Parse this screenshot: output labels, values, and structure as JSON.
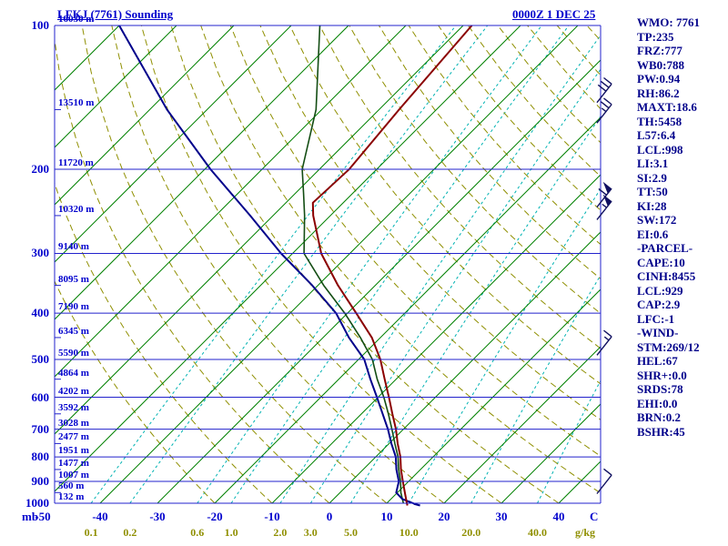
{
  "header": {
    "title": "LFKJ (7761) Sounding",
    "datetime": "0000Z  1 DEC 25"
  },
  "axes": {
    "pressure_unit": "mb",
    "temp_unit": "C",
    "mixing_unit": "g/kg",
    "pressure_labels": [
      100,
      200,
      300,
      400,
      500,
      600,
      700,
      800,
      900,
      1000
    ],
    "height_labels": [
      {
        "p": 100,
        "text": "16030 m"
      },
      {
        "p": 150,
        "text": "13510 m"
      },
      {
        "p": 200,
        "text": "11720 m"
      },
      {
        "p": 250,
        "text": "10320 m"
      },
      {
        "p": 300,
        "text": "9140 m"
      },
      {
        "p": 350,
        "text": "8095 m"
      },
      {
        "p": 400,
        "text": "7190 m"
      },
      {
        "p": 450,
        "text": "6345 m"
      },
      {
        "p": 500,
        "text": "5590 m"
      },
      {
        "p": 550,
        "text": "4864 m"
      },
      {
        "p": 600,
        "text": "4202 m"
      },
      {
        "p": 650,
        "text": "3592 m"
      },
      {
        "p": 700,
        "text": "3028 m"
      },
      {
        "p": 750,
        "text": "2477 m"
      },
      {
        "p": 800,
        "text": "1951 m"
      },
      {
        "p": 850,
        "text": "1477 m"
      },
      {
        "p": 900,
        "text": "1007 m"
      },
      {
        "p": 950,
        "text": "560 m"
      },
      {
        "p": 1000,
        "text": "132 m"
      }
    ],
    "temp_labels": [
      -50,
      -40,
      -30,
      -20,
      -10,
      0,
      10,
      20,
      30,
      40
    ],
    "mixing_labels": [
      "0.1",
      "0.2",
      "0.6",
      "1.0",
      "2.0",
      "3.0",
      "5.0",
      "10.0",
      "20.0",
      "40.0"
    ]
  },
  "stats": {
    "lines": [
      "WMO: 7761",
      "TP:235",
      "FRZ:777",
      "WB0:788",
      "PW:0.94",
      "RH:86.2",
      "MAXT:18.6",
      "TH:5458",
      "L57:6.4",
      "LCL:998",
      "LI:3.1",
      "SI:2.9",
      "TT:50",
      "KI:28",
      "SW:172",
      "EI:0.6",
      "-PARCEL-",
      "CAPE:10",
      "CINH:8455",
      "LCL:929",
      "CAP:2.9",
      "LFC:-1",
      "-WIND-",
      "STM:269/12",
      "HEL:67",
      "SHR+:0.0",
      "SRDS:78",
      "EHI:0.0",
      "BRN:0.2",
      "BSHR:45"
    ]
  },
  "colors": {
    "grid": "#2222cc",
    "isotherm": "#008000",
    "mixing": "#00b2b2",
    "adiabat": "#8f8f00",
    "temperature": "#8b0000",
    "dewpoint": "#00008b",
    "wetbulb": "#134d13",
    "barb": "#101060",
    "axis_text": "#0000cd",
    "mixing_text": "#8f8f00",
    "stats_text": "#00008b"
  },
  "chart_data": {
    "type": "skewt_log_p",
    "title": "LFKJ (7761) Sounding",
    "valid_time": "0000Z 1 DEC 25",
    "pressure_range_mb": [
      100,
      1000
    ],
    "temp_axis_range_c": [
      -50,
      40
    ],
    "isotherms_c": {
      "min": -120,
      "max": 40,
      "step": 10
    },
    "dry_adiabats_c": {
      "min": -20,
      "max": 200,
      "step": 10
    },
    "mixing_ratio_lines_gkg": [
      0.1,
      0.2,
      0.6,
      1.0,
      2.0,
      3.0,
      5.0,
      10.0,
      20.0,
      40.0
    ],
    "temperature_trace_c": [
      [
        1011,
        14.0
      ],
      [
        1000,
        13.5
      ],
      [
        950,
        11.3
      ],
      [
        900,
        9.0
      ],
      [
        850,
        6.6
      ],
      [
        800,
        4.3
      ],
      [
        750,
        1.5
      ],
      [
        700,
        -1.3
      ],
      [
        650,
        -4.6
      ],
      [
        600,
        -8.1
      ],
      [
        550,
        -12.0
      ],
      [
        500,
        -16.2
      ],
      [
        450,
        -21.5
      ],
      [
        400,
        -28.5
      ],
      [
        350,
        -36.5
      ],
      [
        300,
        -45.0
      ],
      [
        250,
        -53.0
      ],
      [
        235,
        -55.3
      ],
      [
        200,
        -54.8
      ],
      [
        150,
        -56.5
      ],
      [
        100,
        -58.5
      ]
    ],
    "dewpoint_trace_c": [
      [
        1011,
        16.2
      ],
      [
        1004,
        15.0
      ],
      [
        1000,
        14.6
      ],
      [
        980,
        12.0
      ],
      [
        950,
        9.8
      ],
      [
        900,
        8.3
      ],
      [
        850,
        5.8
      ],
      [
        800,
        3.5
      ],
      [
        750,
        0.4
      ],
      [
        700,
        -2.7
      ],
      [
        650,
        -6.3
      ],
      [
        600,
        -10.2
      ],
      [
        550,
        -14.5
      ],
      [
        500,
        -19.0
      ],
      [
        450,
        -25.5
      ],
      [
        400,
        -32.0
      ],
      [
        350,
        -41.0
      ],
      [
        300,
        -52.0
      ],
      [
        250,
        -64.0
      ],
      [
        200,
        -79.0
      ],
      [
        150,
        -97.0
      ],
      [
        100,
        -120.0
      ]
    ],
    "wetbulb_trace_c": [
      [
        1000,
        12.9
      ],
      [
        950,
        10.6
      ],
      [
        900,
        8.6
      ],
      [
        850,
        6.2
      ],
      [
        800,
        3.9
      ],
      [
        750,
        1.0
      ],
      [
        700,
        -2.0
      ],
      [
        650,
        -5.3
      ],
      [
        600,
        -9.0
      ],
      [
        550,
        -13.3
      ],
      [
        500,
        -17.6
      ],
      [
        450,
        -23.5
      ],
      [
        400,
        -30.5
      ],
      [
        350,
        -39.0
      ],
      [
        300,
        -48.0
      ],
      [
        250,
        -54.5
      ],
      [
        225,
        -58.5
      ],
      [
        200,
        -63.0
      ],
      [
        150,
        -71.0
      ],
      [
        100,
        -85.0
      ]
    ],
    "wind_barbs": [
      {
        "p_mb": 145,
        "speed_kt": 30
      },
      {
        "p_mb": 160,
        "speed_kt": 25
      },
      {
        "p_mb": 240,
        "speed_kt": 60
      },
      {
        "p_mb": 255,
        "speed_kt": 55
      },
      {
        "p_mb": 490,
        "speed_kt": 15
      },
      {
        "p_mb": 955,
        "speed_kt": 10
      }
    ]
  }
}
